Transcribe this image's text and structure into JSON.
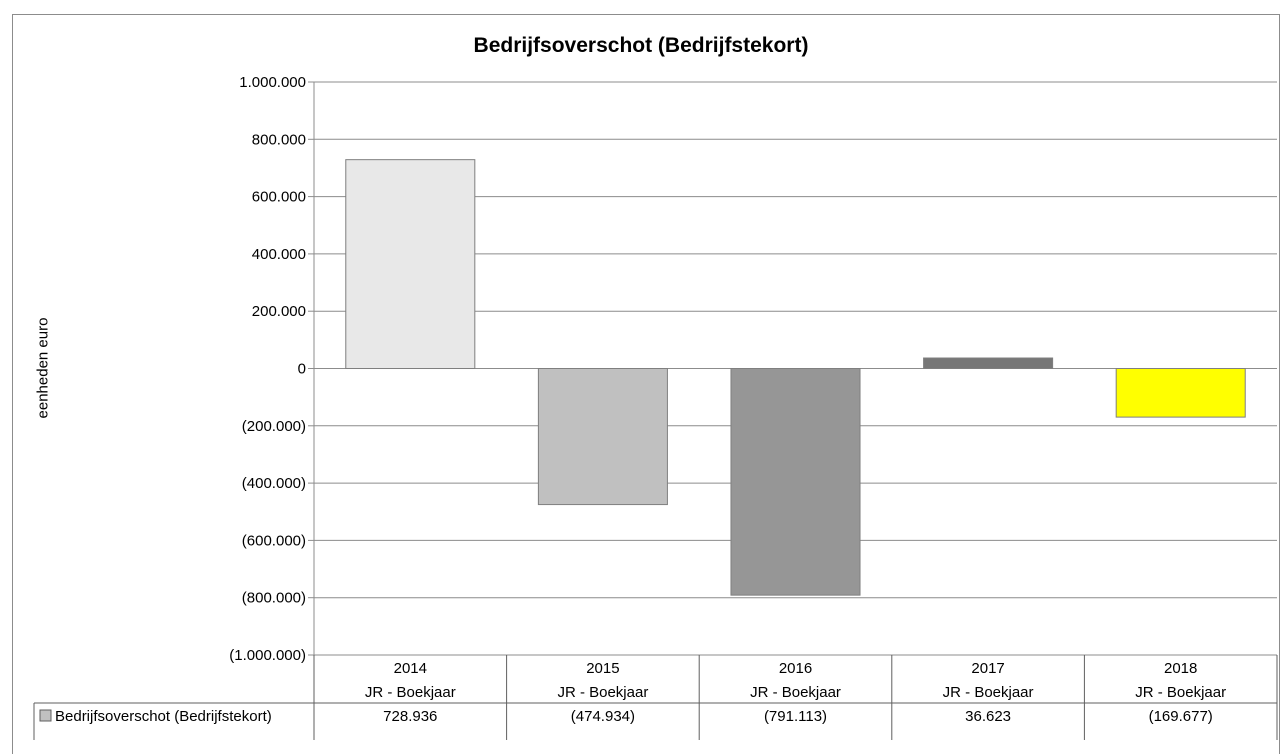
{
  "chart_data": {
    "type": "bar",
    "title": "Bedrijfsoverschot (Bedrijfstekort)",
    "ylabel": "eenheden euro",
    "ylim": [
      -1000000,
      1000000
    ],
    "ytick_values": [
      1000000,
      800000,
      600000,
      400000,
      200000,
      0,
      -200000,
      -400000,
      -600000,
      -800000,
      -1000000
    ],
    "ytick_labels": [
      "1.000.000",
      "800.000",
      "600.000",
      "400.000",
      "200.000",
      "0",
      "(200.000)",
      "(400.000)",
      "(600.000)",
      "(800.000)",
      "(1.000.000)"
    ],
    "grid": true,
    "categories": [
      "2014",
      "2015",
      "2016",
      "2017",
      "2018"
    ],
    "category_sublabel": "JR - Boekjaar",
    "bar_colors": [
      "#e8e8e8",
      "#c0c0c0",
      "#969696",
      "#777777",
      "#ffff00"
    ],
    "series": [
      {
        "name": "Bedrijfsoverschot (Bedrijfstekort)",
        "values": [
          728936,
          -474934,
          -791113,
          36623,
          -169677
        ],
        "value_labels": [
          "728.936",
          "(474.934)",
          "(791.113)",
          "36.623",
          "(169.677)"
        ],
        "legend_color": "#c0c0c0"
      }
    ]
  }
}
